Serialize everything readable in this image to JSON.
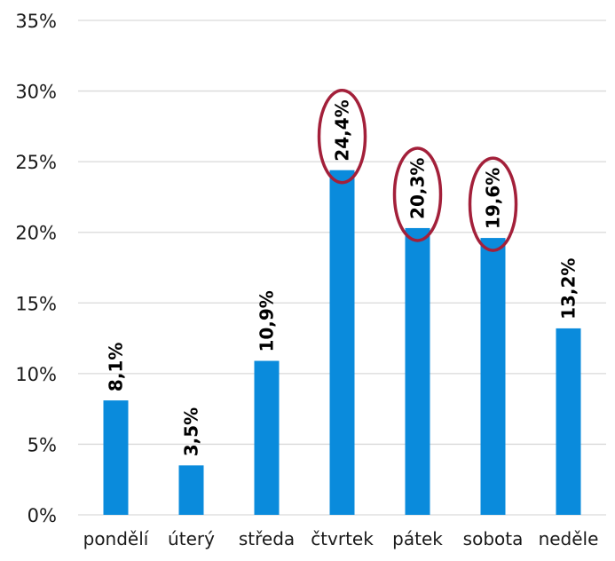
{
  "chart_data": {
    "type": "bar",
    "categories": [
      "pondělí",
      "úterý",
      "středa",
      "čtvrtek",
      "pátek",
      "sobota",
      "neděle"
    ],
    "values": [
      8.1,
      3.5,
      10.9,
      24.4,
      20.3,
      19.6,
      13.2
    ],
    "data_labels": [
      "8,1%",
      "3,5%",
      "10,9%",
      "24,4%",
      "20,3%",
      "19,6%",
      "13,2%"
    ],
    "y_ticks": [
      0,
      5,
      10,
      15,
      20,
      25,
      30,
      35
    ],
    "y_tick_labels": [
      "0%",
      "5%",
      "10%",
      "15%",
      "20%",
      "25%",
      "30%",
      "35%"
    ],
    "ylim": [
      0,
      35
    ],
    "grid": true,
    "legend": "none",
    "bar_color": "#0a8bdc",
    "gridline_color": "#d9d9d9",
    "highlight_color": "#a3203a",
    "highlighted_categories": [
      "čtvrtek",
      "pátek",
      "sobota"
    ]
  }
}
